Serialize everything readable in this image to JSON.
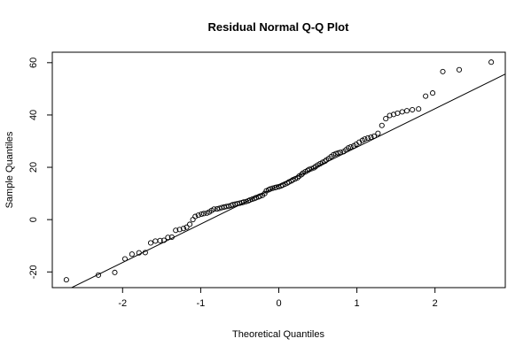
{
  "chart_data": {
    "type": "scatter",
    "title": "Residual Normal Q-Q Plot",
    "xlabel": "Theoretical Quantiles",
    "ylabel": "Sample Quantiles",
    "xlim": [
      -2.9,
      2.9
    ],
    "ylim": [
      -26,
      64
    ],
    "xticks": [
      -2,
      -1,
      0,
      1,
      2
    ],
    "yticks": [
      -20,
      0,
      20,
      40,
      60
    ],
    "grid": false,
    "reference_line": {
      "intercept": 13.0,
      "slope": 14.7
    },
    "points": [
      [
        -2.72,
        -23
      ],
      [
        -2.31,
        -21.2
      ],
      [
        -2.1,
        -20.2
      ],
      [
        -1.97,
        -15
      ],
      [
        -1.88,
        -13.2
      ],
      [
        -1.79,
        -12.7
      ],
      [
        -1.71,
        -12.6
      ],
      [
        -1.64,
        -8.9
      ],
      [
        -1.58,
        -8.2
      ],
      [
        -1.52,
        -8.0
      ],
      [
        -1.47,
        -7.9
      ],
      [
        -1.42,
        -6.8
      ],
      [
        -1.37,
        -6.7
      ],
      [
        -1.32,
        -4.1
      ],
      [
        -1.27,
        -3.8
      ],
      [
        -1.22,
        -3.4
      ],
      [
        -1.18,
        -2.9
      ],
      [
        -1.14,
        -1.8
      ],
      [
        -1.1,
        0.0
      ],
      [
        -1.07,
        1.2
      ],
      [
        -1.03,
        1.7
      ],
      [
        -0.99,
        2.1
      ],
      [
        -0.96,
        2.3
      ],
      [
        -0.92,
        2.5
      ],
      [
        -0.89,
        2.9
      ],
      [
        -0.86,
        3.5
      ],
      [
        -0.83,
        4.0
      ],
      [
        -0.79,
        4.1
      ],
      [
        -0.76,
        4.3
      ],
      [
        -0.73,
        4.6
      ],
      [
        -0.7,
        4.8
      ],
      [
        -0.67,
        5.0
      ],
      [
        -0.64,
        5.2
      ],
      [
        -0.61,
        5.4
      ],
      [
        -0.59,
        5.7
      ],
      [
        -0.56,
        5.9
      ],
      [
        -0.53,
        6.1
      ],
      [
        -0.5,
        6.3
      ],
      [
        -0.47,
        6.5
      ],
      [
        -0.45,
        6.7
      ],
      [
        -0.42,
        6.9
      ],
      [
        -0.39,
        7.2
      ],
      [
        -0.37,
        7.5
      ],
      [
        -0.34,
        7.8
      ],
      [
        -0.31,
        8.1
      ],
      [
        -0.29,
        8.4
      ],
      [
        -0.26,
        8.7
      ],
      [
        -0.24,
        9.0
      ],
      [
        -0.21,
        9.3
      ],
      [
        -0.18,
        10.0
      ],
      [
        -0.16,
        11.0
      ],
      [
        -0.13,
        11.4
      ],
      [
        -0.11,
        11.7
      ],
      [
        -0.08,
        12.0
      ],
      [
        -0.05,
        12.2
      ],
      [
        -0.03,
        12.4
      ],
      [
        0.0,
        12.6
      ],
      [
        0.03,
        12.9
      ],
      [
        0.05,
        13.2
      ],
      [
        0.08,
        13.6
      ],
      [
        0.11,
        14.0
      ],
      [
        0.13,
        14.4
      ],
      [
        0.16,
        14.8
      ],
      [
        0.18,
        15.2
      ],
      [
        0.21,
        15.6
      ],
      [
        0.24,
        16.0
      ],
      [
        0.26,
        16.6
      ],
      [
        0.29,
        17.2
      ],
      [
        0.31,
        17.8
      ],
      [
        0.34,
        18.3
      ],
      [
        0.37,
        18.8
      ],
      [
        0.39,
        19.2
      ],
      [
        0.42,
        19.5
      ],
      [
        0.45,
        19.8
      ],
      [
        0.47,
        20.3
      ],
      [
        0.5,
        20.9
      ],
      [
        0.53,
        21.4
      ],
      [
        0.56,
        21.9
      ],
      [
        0.59,
        22.3
      ],
      [
        0.61,
        22.8
      ],
      [
        0.64,
        23.4
      ],
      [
        0.67,
        24.1
      ],
      [
        0.7,
        24.8
      ],
      [
        0.73,
        25.2
      ],
      [
        0.76,
        25.5
      ],
      [
        0.79,
        25.7
      ],
      [
        0.83,
        26.0
      ],
      [
        0.86,
        26.7
      ],
      [
        0.89,
        27.4
      ],
      [
        0.92,
        27.8
      ],
      [
        0.96,
        28.2
      ],
      [
        0.99,
        28.8
      ],
      [
        1.03,
        29.6
      ],
      [
        1.07,
        30.3
      ],
      [
        1.1,
        30.8
      ],
      [
        1.14,
        31.2
      ],
      [
        1.18,
        31.5
      ],
      [
        1.22,
        31.9
      ],
      [
        1.27,
        33.0
      ],
      [
        1.32,
        36.0
      ],
      [
        1.37,
        38.6
      ],
      [
        1.42,
        39.8
      ],
      [
        1.47,
        40.2
      ],
      [
        1.52,
        40.7
      ],
      [
        1.58,
        41.2
      ],
      [
        1.64,
        41.6
      ],
      [
        1.71,
        42.0
      ],
      [
        1.79,
        42.3
      ],
      [
        1.88,
        47.2
      ],
      [
        1.97,
        48.4
      ],
      [
        2.1,
        56.6
      ],
      [
        2.31,
        57.3
      ],
      [
        2.72,
        60.2
      ]
    ]
  }
}
